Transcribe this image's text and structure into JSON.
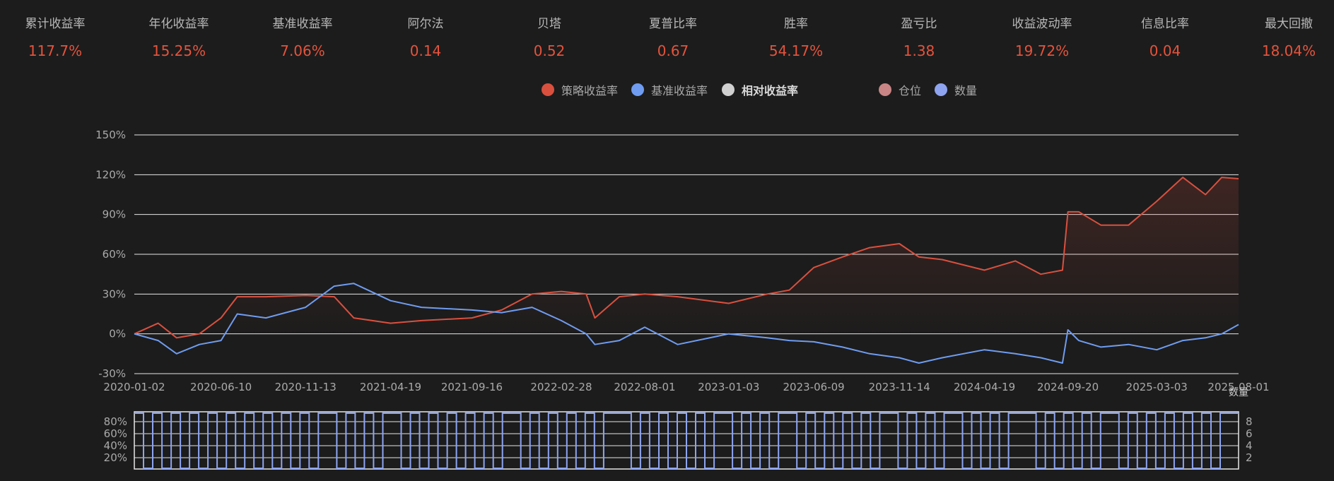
{
  "stats": [
    {
      "label": "累计收益率",
      "value": "117.7%"
    },
    {
      "label": "年化收益率",
      "value": "15.25%"
    },
    {
      "label": "基准收益率",
      "value": "7.06%"
    },
    {
      "label": "阿尔法",
      "value": "0.14"
    },
    {
      "label": "贝塔",
      "value": "0.52"
    },
    {
      "label": "夏普比率",
      "value": "0.67"
    },
    {
      "label": "胜率",
      "value": "54.17%"
    },
    {
      "label": "盈亏比",
      "value": "1.38"
    },
    {
      "label": "收益波动率",
      "value": "19.72%"
    },
    {
      "label": "信息比率",
      "value": "0.04"
    },
    {
      "label": "最大回撤",
      "value": "18.04%"
    }
  ],
  "legend": [
    {
      "label": "策略收益率",
      "color": "#d9503f"
    },
    {
      "label": "基准收益率",
      "color": "#6f9cf0"
    },
    {
      "label": "相对收益率",
      "color": "#d0d0d0"
    },
    {
      "label": "仓位",
      "color": "#c98585"
    },
    {
      "label": "数量",
      "color": "#8ea4f0"
    }
  ],
  "colors": {
    "strategy": "#d9503f",
    "benchmark": "#6f9cf0",
    "position": "#8ea4f0",
    "grid": "#e6e6e6",
    "axis_text": "#aaaaaa"
  },
  "chart_data": [
    {
      "type": "line",
      "x_ticks": [
        "2020-01-02",
        "2020-06-10",
        "2020-11-13",
        "2021-04-19",
        "2021-09-16",
        "2022-02-28",
        "2022-08-01",
        "2023-01-03",
        "2023-06-09",
        "2023-11-14",
        "2024-04-19",
        "2024-09-20",
        "2025-03-03",
        "2025-08-01"
      ],
      "y_ticks": [
        "150%",
        "120%",
        "90%",
        "60%",
        "30%",
        "0%",
        "-30%"
      ],
      "ylim": [
        -30,
        150
      ],
      "xlim": [
        "2020-01-02",
        "2025-08-01"
      ],
      "series": [
        {
          "name": "策略收益率",
          "x": [
            "2020-01-02",
            "2020-02-15",
            "2020-03-20",
            "2020-05-01",
            "2020-06-10",
            "2020-07-10",
            "2020-09-01",
            "2020-11-13",
            "2021-01-05",
            "2021-02-10",
            "2021-04-19",
            "2021-06-15",
            "2021-09-16",
            "2021-11-10",
            "2022-01-05",
            "2022-02-28",
            "2022-04-15",
            "2022-05-01",
            "2022-06-15",
            "2022-08-01",
            "2022-10-01",
            "2023-01-03",
            "2023-03-15",
            "2023-04-25",
            "2023-06-09",
            "2023-08-01",
            "2023-09-20",
            "2023-11-14",
            "2023-12-20",
            "2024-02-01",
            "2024-04-19",
            "2024-06-15",
            "2024-08-01",
            "2024-09-10",
            "2024-09-20",
            "2024-10-10",
            "2024-11-20",
            "2025-01-10",
            "2025-03-03",
            "2025-04-20",
            "2025-06-01",
            "2025-07-01",
            "2025-08-01"
          ],
          "y": [
            0,
            8,
            -3,
            0,
            12,
            28,
            28,
            29,
            28,
            12,
            8,
            10,
            12,
            18,
            30,
            32,
            30,
            12,
            28,
            30,
            28,
            23,
            30,
            33,
            50,
            58,
            65,
            68,
            58,
            56,
            48,
            55,
            45,
            48,
            92,
            92,
            82,
            82,
            100,
            118,
            105,
            118,
            117
          ]
        },
        {
          "name": "基准收益率",
          "x": [
            "2020-01-02",
            "2020-02-15",
            "2020-03-20",
            "2020-05-01",
            "2020-06-10",
            "2020-07-10",
            "2020-09-01",
            "2020-11-13",
            "2021-01-05",
            "2021-02-10",
            "2021-04-19",
            "2021-06-15",
            "2021-09-16",
            "2021-11-10",
            "2022-01-05",
            "2022-02-28",
            "2022-04-15",
            "2022-05-01",
            "2022-06-15",
            "2022-08-01",
            "2022-10-01",
            "2023-01-03",
            "2023-03-15",
            "2023-04-25",
            "2023-06-09",
            "2023-08-01",
            "2023-09-20",
            "2023-11-14",
            "2023-12-20",
            "2024-02-01",
            "2024-04-19",
            "2024-06-15",
            "2024-08-01",
            "2024-09-10",
            "2024-09-20",
            "2024-10-10",
            "2024-11-20",
            "2025-01-10",
            "2025-03-03",
            "2025-04-20",
            "2025-06-01",
            "2025-07-01",
            "2025-08-01"
          ],
          "y": [
            0,
            -5,
            -15,
            -8,
            -5,
            15,
            12,
            20,
            36,
            38,
            25,
            20,
            18,
            16,
            20,
            10,
            0,
            -8,
            -5,
            5,
            -8,
            0,
            -3,
            -5,
            -6,
            -10,
            -15,
            -18,
            -22,
            -18,
            -12,
            -15,
            -18,
            -22,
            3,
            -5,
            -10,
            -8,
            -12,
            -5,
            -3,
            0,
            7
          ]
        }
      ]
    },
    {
      "type": "area",
      "name": "仓位",
      "y_ticks": [
        "80%",
        "60%",
        "40%",
        "20%"
      ],
      "y_ticks_right": [
        "8",
        "6",
        "4",
        "2"
      ],
      "levels": [
        1,
        0,
        1,
        0,
        1,
        0,
        1,
        0,
        1,
        0,
        1,
        0,
        1,
        0,
        1,
        0,
        1,
        0,
        1,
        0,
        1,
        1,
        0,
        1,
        0,
        1,
        0,
        1,
        1,
        0,
        1,
        0,
        1,
        0,
        1,
        0,
        1,
        0,
        1,
        0,
        1,
        1,
        0,
        1,
        0,
        1,
        0,
        1,
        0,
        1,
        0,
        1,
        1,
        1,
        0,
        1,
        0,
        1,
        0,
        1,
        0,
        1,
        0,
        1,
        1,
        0,
        1,
        0,
        1,
        0,
        1,
        1,
        0,
        1,
        0,
        1,
        0,
        1,
        0,
        1,
        0,
        1,
        1,
        0,
        1,
        0,
        1,
        0,
        1,
        1,
        0,
        1,
        0,
        1,
        0,
        1,
        1,
        1,
        0,
        1,
        0,
        1,
        0,
        1,
        0,
        1,
        1,
        0,
        1,
        0,
        1,
        0,
        1,
        0,
        1,
        0,
        1,
        0,
        1,
        1
      ],
      "series_label": "数量"
    }
  ]
}
